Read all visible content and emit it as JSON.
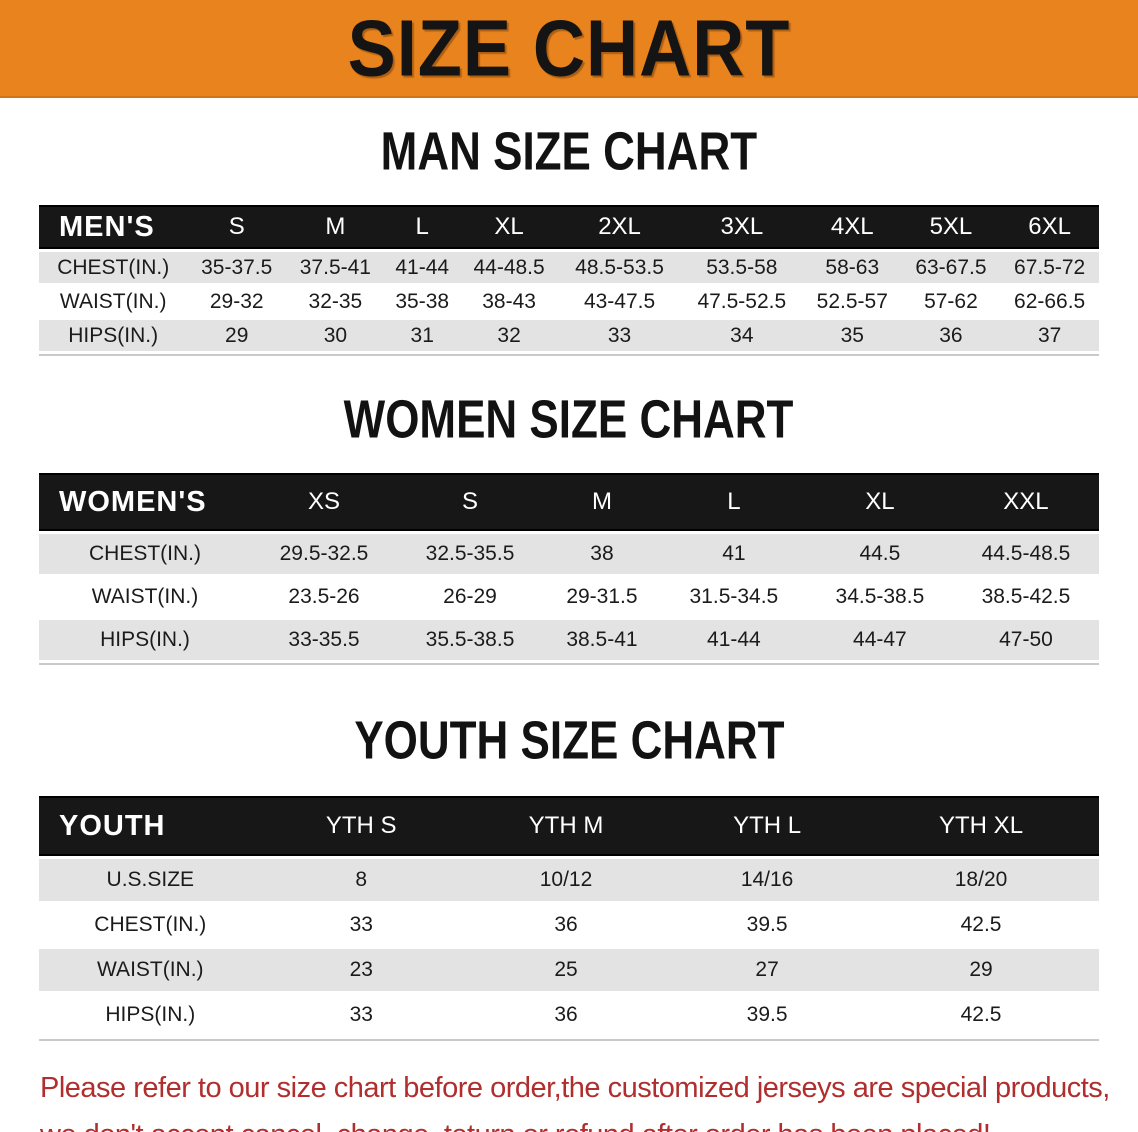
{
  "banner": {
    "title": "SIZE CHART",
    "bg_color": "#E8831D"
  },
  "colors": {
    "table_header_bg": "#171717",
    "row_shade": "#E3E3E3",
    "disclaimer_text": "#B02E2E"
  },
  "sections": [
    {
      "heading": "MAN SIZE CHART",
      "table": {
        "header_label": "MEN'S",
        "columns": [
          "S",
          "M",
          "L",
          "XL",
          "2XL",
          "3XL",
          "4XL",
          "5XL",
          "6XL"
        ],
        "rows": [
          {
            "label": "CHEST(IN.)",
            "values": [
              "35-37.5",
              "37.5-41",
              "41-44",
              "44-48.5",
              "48.5-53.5",
              "53.5-58",
              "58-63",
              "63-67.5",
              "67.5-72"
            ]
          },
          {
            "label": "WAIST(IN.)",
            "values": [
              "29-32",
              "32-35",
              "35-38",
              "38-43",
              "43-47.5",
              "47.5-52.5",
              "52.5-57",
              "57-62",
              "62-66.5"
            ]
          },
          {
            "label": "HIPS(IN.)",
            "values": [
              "29",
              "30",
              "31",
              "32",
              "33",
              "34",
              "35",
              "36",
              "37"
            ]
          }
        ]
      }
    },
    {
      "heading": "WOMEN SIZE CHART",
      "table": {
        "header_label": "WOMEN'S",
        "columns": [
          "XS",
          "S",
          "M",
          "L",
          "XL",
          "XXL"
        ],
        "rows": [
          {
            "label": "CHEST(IN.)",
            "values": [
              "29.5-32.5",
              "32.5-35.5",
              "38",
              "41",
              "44.5",
              "44.5-48.5"
            ]
          },
          {
            "label": "WAIST(IN.)",
            "values": [
              "23.5-26",
              "26-29",
              "29-31.5",
              "31.5-34.5",
              "34.5-38.5",
              "38.5-42.5"
            ]
          },
          {
            "label": "HIPS(IN.)",
            "values": [
              "33-35.5",
              "35.5-38.5",
              "38.5-41",
              "41-44",
              "44-47",
              "47-50"
            ]
          }
        ]
      }
    },
    {
      "heading": "YOUTH SIZE CHART",
      "table": {
        "header_label": "YOUTH",
        "columns": [
          "YTH S",
          "YTH M",
          "YTH L",
          "YTH XL"
        ],
        "rows": [
          {
            "label": "U.S.SIZE",
            "values": [
              "8",
              "10/12",
              "14/16",
              "18/20"
            ]
          },
          {
            "label": "CHEST(IN.)",
            "values": [
              "33",
              "36",
              "39.5",
              "42.5"
            ]
          },
          {
            "label": "WAIST(IN.)",
            "values": [
              "23",
              "25",
              "27",
              "29"
            ]
          },
          {
            "label": "HIPS(IN.)",
            "values": [
              "33",
              "36",
              "39.5",
              "42.5"
            ]
          }
        ]
      }
    }
  ],
  "disclaimer": {
    "line1": "Please refer to our size chart before order,the customized jerseys are special products,",
    "line2": "we don't accept cancel, change, teturn or refund after order has been placed!"
  }
}
